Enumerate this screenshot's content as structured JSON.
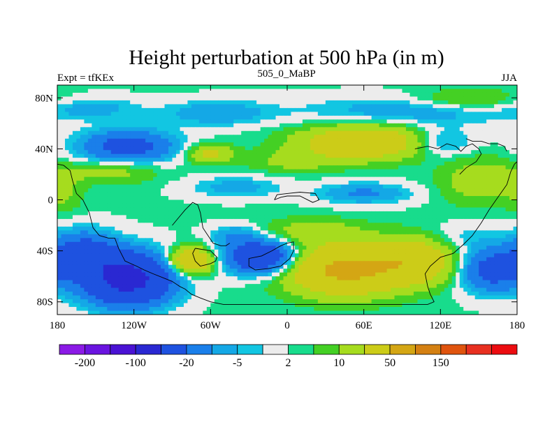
{
  "chart_data": {
    "type": "heatmap",
    "title": "Height perturbation at 500 hPa (in m)",
    "left_label": "Expt = tfKEx",
    "center_label": "505_0_MaBP",
    "right_label": "JJA",
    "x_axis": {
      "range": [
        -180,
        180
      ],
      "ticks": [
        {
          "value": -180,
          "label": "180"
        },
        {
          "value": -120,
          "label": "120W"
        },
        {
          "value": -60,
          "label": "60W"
        },
        {
          "value": 0,
          "label": "0"
        },
        {
          "value": 60,
          "label": "60E"
        },
        {
          "value": 120,
          "label": "120E"
        },
        {
          "value": 180,
          "label": "180"
        }
      ]
    },
    "y_axis": {
      "range": [
        -90,
        90
      ],
      "ticks": [
        {
          "value": 80,
          "label": "80N"
        },
        {
          "value": 40,
          "label": "40N"
        },
        {
          "value": 0,
          "label": "0"
        },
        {
          "value": -40,
          "label": "40S"
        },
        {
          "value": -80,
          "label": "80S"
        }
      ]
    },
    "colorbar": {
      "colors": [
        "#8b1ae6",
        "#6a14e0",
        "#4a12d4",
        "#2a28d2",
        "#1e52e0",
        "#1a7fea",
        "#14a8e6",
        "#12c6e2",
        "#ececec",
        "#18dc8c",
        "#44d024",
        "#a6dc1e",
        "#cccc18",
        "#d4a614",
        "#d48012",
        "#e0540e",
        "#e83020",
        "#ec0c10"
      ],
      "labels": [
        {
          "after_index": 0,
          "text": "-200"
        },
        {
          "after_index": 2,
          "text": "-100"
        },
        {
          "after_index": 4,
          "text": "-20"
        },
        {
          "after_index": 6,
          "text": "-5"
        },
        {
          "after_index": 8,
          "text": "2"
        },
        {
          "after_index": 10,
          "text": "10"
        },
        {
          "after_index": 12,
          "text": "50"
        },
        {
          "after_index": 14,
          "text": "150"
        }
      ]
    },
    "field": {
      "base": 2.5,
      "features": [
        {
          "lon": -125,
          "lat": -62,
          "amp": -65,
          "slon": 24,
          "slat": 14
        },
        {
          "lon": -160,
          "lat": -42,
          "amp": -30,
          "slon": 18,
          "slat": 12
        },
        {
          "lon": -20,
          "lat": -45,
          "amp": -45,
          "slon": 20,
          "slat": 9
        },
        {
          "lon": -40,
          "lat": -28,
          "amp": -12,
          "slon": 14,
          "slat": 6
        },
        {
          "lon": -75,
          "lat": -48,
          "amp": 42,
          "slon": 12,
          "slat": 7
        },
        {
          "lon": 45,
          "lat": -55,
          "amp": 55,
          "slon": 30,
          "slat": 13
        },
        {
          "lon": 100,
          "lat": -48,
          "amp": 35,
          "slon": 22,
          "slat": 12
        },
        {
          "lon": 20,
          "lat": -25,
          "amp": 12,
          "slon": 28,
          "slat": 7
        },
        {
          "lon": 160,
          "lat": -55,
          "amp": -30,
          "slon": 18,
          "slat": 12
        },
        {
          "lon": 135,
          "lat": -30,
          "amp": -6,
          "slon": 20,
          "slat": 8
        },
        {
          "lon": 60,
          "lat": 45,
          "amp": 38,
          "slon": 34,
          "slat": 9
        },
        {
          "lon": 5,
          "lat": 30,
          "amp": 10,
          "slon": 24,
          "slat": 6
        },
        {
          "lon": 150,
          "lat": 15,
          "amp": 14,
          "slon": 20,
          "slat": 12
        },
        {
          "lon": -140,
          "lat": 22,
          "amp": 12,
          "slon": 26,
          "slat": 6
        },
        {
          "lon": -175,
          "lat": 5,
          "amp": 8,
          "slon": 10,
          "slat": 10
        },
        {
          "lon": -60,
          "lat": 36,
          "amp": 22,
          "slon": 12,
          "slat": 5
        },
        {
          "lon": -125,
          "lat": 42,
          "amp": -30,
          "slon": 26,
          "slat": 9
        },
        {
          "lon": -55,
          "lat": 68,
          "amp": -12,
          "slon": 30,
          "slat": 7
        },
        {
          "lon": -40,
          "lat": 10,
          "amp": -10,
          "slon": 26,
          "slat": 6
        },
        {
          "lon": 60,
          "lat": 5,
          "amp": -14,
          "slon": 26,
          "slat": 6
        },
        {
          "lon": 120,
          "lat": 45,
          "amp": -14,
          "slon": 18,
          "slat": 8
        },
        {
          "lon": 100,
          "lat": 70,
          "amp": -12,
          "slon": 60,
          "slat": 8
        },
        {
          "lon": 140,
          "lat": 78,
          "amp": 12,
          "slon": 30,
          "slat": 6
        },
        {
          "lon": -150,
          "lat": 72,
          "amp": -8,
          "slon": 25,
          "slat": 6
        }
      ]
    },
    "coastlines": [
      [
        [
          -180,
          28
        ],
        [
          -175,
          27
        ],
        [
          -170,
          23
        ],
        [
          -168,
          15
        ],
        [
          -165,
          5
        ],
        [
          -160,
          0
        ],
        [
          -155,
          -10
        ],
        [
          -152,
          -22
        ],
        [
          -147,
          -28
        ],
        [
          -140,
          -30
        ],
        [
          -135,
          -30
        ],
        [
          -132,
          -38
        ],
        [
          -130,
          -42
        ],
        [
          -127,
          -48
        ],
        [
          -118,
          -52
        ],
        [
          -112,
          -55
        ],
        [
          -105,
          -58
        ],
        [
          -95,
          -62
        ],
        [
          -90,
          -64
        ],
        [
          -84,
          -68
        ],
        [
          -80,
          -70
        ],
        [
          -75,
          -74
        ],
        [
          -68,
          -77
        ],
        [
          -60,
          -80
        ],
        [
          -50,
          -82
        ],
        [
          -40,
          -82
        ],
        [
          -20,
          -82
        ],
        [
          0,
          -82
        ],
        [
          30,
          -82
        ],
        [
          60,
          -82
        ],
        [
          90,
          -82
        ],
        [
          110,
          -82
        ],
        [
          115,
          -80
        ],
        [
          112,
          -74
        ],
        [
          110,
          -68
        ],
        [
          108,
          -58
        ],
        [
          112,
          -52
        ],
        [
          120,
          -45
        ],
        [
          130,
          -42
        ],
        [
          138,
          -35
        ],
        [
          145,
          -28
        ],
        [
          152,
          -18
        ],
        [
          158,
          -8
        ],
        [
          165,
          2
        ],
        [
          172,
          12
        ],
        [
          175,
          22
        ],
        [
          178,
          28
        ],
        [
          180,
          30
        ]
      ],
      [
        [
          -90,
          -20
        ],
        [
          -85,
          -14
        ],
        [
          -80,
          -8
        ],
        [
          -74,
          -2
        ],
        [
          -70,
          -4
        ],
        [
          -68,
          -10
        ],
        [
          -66,
          -22
        ],
        [
          -62,
          -28
        ],
        [
          -58,
          -34
        ],
        [
          -52,
          -36
        ],
        [
          -48,
          -36
        ],
        [
          -45,
          -34
        ]
      ],
      [
        [
          -72,
          -38
        ],
        [
          -60,
          -40
        ],
        [
          -55,
          -45
        ],
        [
          -56,
          -48
        ],
        [
          -60,
          -50
        ],
        [
          -68,
          -52
        ],
        [
          -72,
          -48
        ],
        [
          -74,
          -42
        ],
        [
          -72,
          -38
        ]
      ],
      [
        [
          -5,
          -36
        ],
        [
          0,
          -34
        ],
        [
          5,
          -33
        ],
        [
          5,
          -40
        ],
        [
          2,
          -46
        ],
        [
          -5,
          -52
        ],
        [
          -15,
          -54
        ],
        [
          -25,
          -55
        ],
        [
          -30,
          -52
        ],
        [
          -30,
          -46
        ],
        [
          -20,
          -44
        ],
        [
          -12,
          -40
        ],
        [
          -5,
          -36
        ]
      ],
      [
        [
          -10,
          0
        ],
        [
          -5,
          2
        ],
        [
          0,
          3
        ],
        [
          10,
          3
        ],
        [
          20,
          -2
        ],
        [
          25,
          0
        ],
        [
          22,
          5
        ],
        [
          10,
          6
        ],
        [
          0,
          5
        ],
        [
          -8,
          4
        ],
        [
          -10,
          0
        ]
      ],
      [
        [
          100,
          40
        ],
        [
          110,
          42
        ],
        [
          118,
          40
        ],
        [
          125,
          44
        ],
        [
          132,
          42
        ],
        [
          136,
          38
        ],
        [
          140,
          42
        ],
        [
          145,
          44
        ],
        [
          150,
          40
        ],
        [
          152,
          36
        ],
        [
          148,
          30
        ],
        [
          140,
          25
        ],
        [
          135,
          20
        ]
      ],
      [
        [
          140,
          48
        ],
        [
          145,
          46
        ],
        [
          152,
          46
        ],
        [
          158,
          44
        ],
        [
          165,
          44
        ],
        [
          170,
          42
        ],
        [
          172,
          38
        ]
      ]
    ]
  }
}
